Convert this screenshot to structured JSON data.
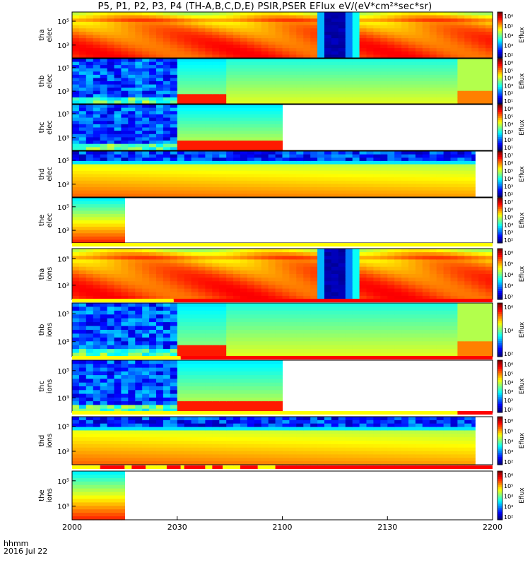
{
  "title": "P5, P1, P2, P3, P4 (TH-A,B,C,D,E) PSIR,PSER EFlux eV/(eV*cm²*sec*sr)",
  "footer": {
    "line1": "hhmm",
    "line2": "2016 Jul 22"
  },
  "chart_data": [
    {
      "type": "heatmap",
      "title": "P5, P1, P2, P3, P4 (TH-A,B,C,D,E) PSIR,PSER EFlux eV/(eV*cm²*sec*sr)",
      "x_axis": {
        "range": [
          "2000",
          "2200"
        ],
        "ticks": [
          "2000",
          "2030",
          "2100",
          "2130",
          "2200"
        ],
        "xlabel": "hhmm",
        "date": "2016 Jul 22"
      },
      "panels": [
        {
          "ylabel": [
            "tha",
            "elec"
          ],
          "yticks": [
            "10⁵",
            "10³"
          ],
          "colorbar_ticks": [
            "10⁶",
            "10⁵",
            "10⁴",
            "10³",
            "10²"
          ],
          "colorbar_label": "Eflux",
          "data_end": "2200",
          "profile": "tha",
          "note": "broad high flux (red) across all times, dip to low flux near 2110-2125"
        },
        {
          "ylabel": [
            "thb",
            "elec"
          ],
          "yticks": [
            "10⁵",
            "10³"
          ],
          "colorbar_ticks": [
            "10⁶",
            "10⁵",
            "10⁴",
            "10³",
            "10²",
            "10¹"
          ],
          "colorbar_label": "Eflux",
          "data_end": "2200",
          "profile": "thb",
          "note": "noisy low flux before 2030, moderate flux after"
        },
        {
          "ylabel": [
            "thc",
            "elec"
          ],
          "yticks": [
            "10⁵",
            "10³"
          ],
          "colorbar_ticks": [
            "10⁶",
            "10⁵",
            "10⁴",
            "10³",
            "10²",
            "10¹"
          ],
          "colorbar_label": "Eflux",
          "data_end": "2100",
          "profile": "thc",
          "note": "data ends near 2100"
        },
        {
          "ylabel": [
            "thd",
            "elec"
          ],
          "yticks": [
            "10⁵",
            "10³"
          ],
          "colorbar_ticks": [
            "10⁷",
            "10⁶",
            "10⁵",
            "10⁴",
            "10³",
            "10²"
          ],
          "colorbar_label": "Eflux",
          "data_end": "2155",
          "profile": "thd",
          "note": "high flux at low energy, data ends near 2155"
        },
        {
          "ylabel": [
            "the",
            "elec"
          ],
          "yticks": [
            "10⁵",
            "10³"
          ],
          "colorbar_ticks": [
            "10⁷",
            "10⁶",
            "10⁵",
            "10⁴",
            "10³",
            "10²"
          ],
          "colorbar_label": "Eflux",
          "data_end": "2015",
          "profile": "the",
          "note": "data only from 2000 to ~2015"
        },
        {
          "ylabel": [
            "tha",
            "ions"
          ],
          "yticks": [
            "10⁵",
            "10³"
          ],
          "colorbar_ticks": [
            "10⁶",
            "10⁵",
            "10⁴",
            "10³",
            "10²"
          ],
          "colorbar_label": "Eflux",
          "data_end": "2200",
          "profile": "tha",
          "note": "similar to tha elec"
        },
        {
          "ylabel": [
            "thb",
            "ions"
          ],
          "yticks": [
            "10⁵",
            "10³"
          ],
          "colorbar_ticks": [
            "10⁶",
            "10⁴",
            "10²"
          ],
          "colorbar_label": "Eflux",
          "data_end": "2200",
          "profile": "thb",
          "note": "similar to thb elec"
        },
        {
          "ylabel": [
            "thc",
            "ions"
          ],
          "yticks": [
            "10⁵",
            "10³"
          ],
          "colorbar_ticks": [
            "10⁶",
            "10⁵",
            "10⁴",
            "10³",
            "10²",
            "10¹"
          ],
          "colorbar_label": "Eflux",
          "data_end": "2100",
          "profile": "thc",
          "note": "data ends near 2100"
        },
        {
          "ylabel": [
            "thd",
            "ions"
          ],
          "yticks": [
            "10⁵",
            "10³"
          ],
          "colorbar_ticks": [
            "10⁶",
            "10⁵",
            "10⁴",
            "10³",
            "10²"
          ],
          "colorbar_label": "Eflux",
          "data_end": "2155",
          "profile": "thd",
          "note": "data ends near 2155"
        },
        {
          "ylabel": [
            "the",
            "ions"
          ],
          "yticks": [
            "10⁵",
            "10³"
          ],
          "colorbar_ticks": [
            "10⁶",
            "10⁵",
            "10⁴",
            "10³",
            "10²"
          ],
          "colorbar_label": "Eflux",
          "data_end": "2015",
          "profile": "the",
          "note": "data only from 2000 to ~2015"
        }
      ],
      "mode_bars": [
        {
          "after_panel": 5,
          "segments": [
            {
              "from": "2000",
              "to": "2200",
              "color": "yellow"
            }
          ]
        },
        {
          "after_panel": 6,
          "segments": [
            {
              "from": "2000",
              "to": "2029",
              "color": "yellow"
            },
            {
              "from": "2029",
              "to": "2200",
              "color": "red"
            }
          ]
        },
        {
          "after_panel": 7,
          "segments": [
            {
              "from": "2000",
              "to": "2031",
              "color": "yellow"
            },
            {
              "from": "2031",
              "to": "2200",
              "color": "red"
            }
          ]
        },
        {
          "after_panel": 8,
          "segments": [
            {
              "from": "2000",
              "to": "2150",
              "color": "yellow"
            },
            {
              "from": "2150",
              "to": "2200",
              "color": "red"
            }
          ]
        },
        {
          "after_panel": 9,
          "segments": [
            {
              "from": "2000",
              "to": "2008",
              "color": "yellow"
            },
            {
              "from": "2008",
              "to": "2015",
              "color": "red"
            },
            {
              "from": "2015",
              "to": "2017",
              "color": "yellow"
            },
            {
              "from": "2017",
              "to": "2021",
              "color": "red"
            },
            {
              "from": "2021",
              "to": "2027",
              "color": "yellow"
            },
            {
              "from": "2027",
              "to": "2031",
              "color": "red"
            },
            {
              "from": "2031",
              "to": "2032",
              "color": "yellow"
            },
            {
              "from": "2032",
              "to": "2038",
              "color": "red"
            },
            {
              "from": "2038",
              "to": "2040",
              "color": "yellow"
            },
            {
              "from": "2040",
              "to": "2043",
              "color": "red"
            },
            {
              "from": "2043",
              "to": "2048",
              "color": "yellow"
            },
            {
              "from": "2048",
              "to": "2053",
              "color": "red"
            },
            {
              "from": "2053",
              "to": "2058",
              "color": "yellow"
            },
            {
              "from": "2058",
              "to": "2200",
              "color": "red"
            }
          ]
        }
      ]
    }
  ]
}
